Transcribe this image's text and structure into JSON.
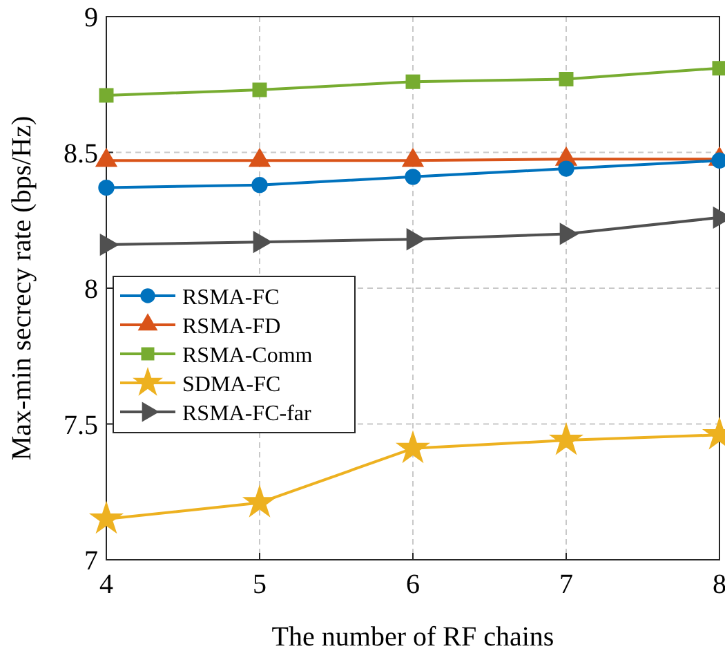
{
  "chart_data": {
    "type": "line",
    "xlabel": "The number of RF chains",
    "ylabel": "Max-min secrecy rate (bps/Hz)",
    "x": [
      4,
      5,
      6,
      7,
      8
    ],
    "xlim": [
      4,
      8
    ],
    "xticks": [
      4,
      5,
      6,
      7,
      8
    ],
    "ylim": [
      7,
      9
    ],
    "yticks": [
      7,
      7.5,
      8,
      8.5,
      9
    ],
    "grid": true,
    "legend": "left",
    "line_style": "solid",
    "series": [
      {
        "name": "RSMA-FC",
        "color": "#0072bd",
        "marker": "circle",
        "values": [
          8.37,
          8.38,
          8.41,
          8.44,
          8.47
        ]
      },
      {
        "name": "RSMA-FD",
        "color": "#d95319",
        "marker": "triangle",
        "values": [
          8.47,
          8.47,
          8.47,
          8.475,
          8.475
        ]
      },
      {
        "name": "RSMA-Comm",
        "color": "#77ac30",
        "marker": "square",
        "values": [
          8.71,
          8.73,
          8.76,
          8.77,
          8.81
        ]
      },
      {
        "name": "SDMA-FC",
        "color": "#edb120",
        "marker": "star",
        "values": [
          7.15,
          7.21,
          7.41,
          7.44,
          7.46
        ]
      },
      {
        "name": "RSMA-FC-far",
        "color": "#505050",
        "marker": "triangle-right",
        "values": [
          8.16,
          8.17,
          8.18,
          8.2,
          8.26
        ]
      }
    ]
  }
}
